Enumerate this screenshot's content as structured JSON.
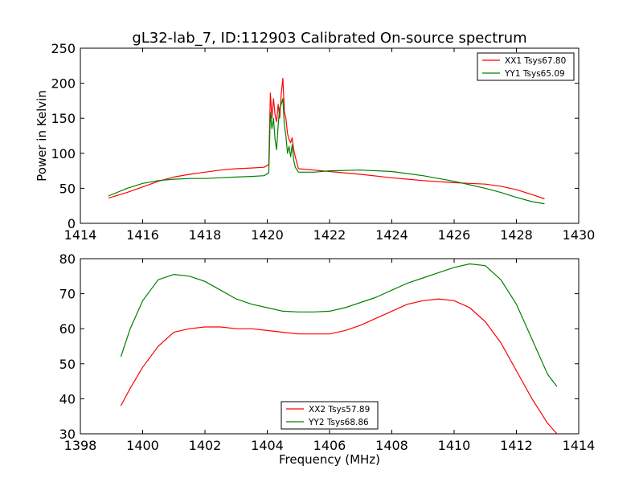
{
  "chart_data": [
    {
      "type": "line",
      "title": "gL32-lab_7, ID:112903 Calibrated On-source spectrum",
      "xlabel": "",
      "ylabel": "Power in Kelvin",
      "xlim": [
        1414,
        1430
      ],
      "ylim": [
        0,
        250
      ],
      "xticks": [
        "1414",
        "1416",
        "1418",
        "1420",
        "1422",
        "1424",
        "1426",
        "1428",
        "1430"
      ],
      "yticks": [
        "0",
        "50",
        "100",
        "150",
        "200",
        "250"
      ],
      "legend_position": "top-right",
      "series": [
        {
          "name": "XX1 Tsys67.80",
          "color": "#ff0000",
          "x": [
            1414.9,
            1415.5,
            1416.0,
            1416.5,
            1417.0,
            1417.5,
            1418.0,
            1418.5,
            1419.0,
            1419.5,
            1419.9,
            1420.05,
            1420.1,
            1420.15,
            1420.2,
            1420.25,
            1420.3,
            1420.35,
            1420.4,
            1420.45,
            1420.5,
            1420.55,
            1420.6,
            1420.65,
            1420.7,
            1420.75,
            1420.8,
            1420.85,
            1420.9,
            1421.0,
            1421.5,
            1422.0,
            1423.0,
            1424.0,
            1425.0,
            1426.0,
            1426.5,
            1427.0,
            1427.5,
            1428.0,
            1428.5,
            1428.9
          ],
          "y": [
            36,
            44,
            52,
            60,
            66,
            70,
            73,
            76,
            78,
            79,
            80,
            84,
            186,
            150,
            178,
            155,
            145,
            170,
            150,
            185,
            207,
            160,
            150,
            128,
            120,
            115,
            122,
            105,
            95,
            78,
            76,
            74,
            70,
            65,
            61,
            58,
            57,
            56,
            53,
            48,
            41,
            35
          ]
        },
        {
          "name": "YY1 Tsys65.09",
          "color": "#008000",
          "x": [
            1414.9,
            1415.5,
            1416.0,
            1416.5,
            1417.0,
            1417.5,
            1418.0,
            1418.5,
            1419.0,
            1419.5,
            1419.9,
            1420.05,
            1420.1,
            1420.15,
            1420.2,
            1420.25,
            1420.3,
            1420.35,
            1420.4,
            1420.45,
            1420.5,
            1420.55,
            1420.6,
            1420.65,
            1420.7,
            1420.75,
            1420.8,
            1420.85,
            1420.9,
            1421.0,
            1421.5,
            1422.0,
            1423.0,
            1424.0,
            1425.0,
            1426.0,
            1426.5,
            1427.0,
            1427.5,
            1428.0,
            1428.5,
            1428.9
          ],
          "y": [
            39,
            50,
            57,
            61,
            63,
            64,
            64,
            65,
            66,
            67,
            68,
            72,
            158,
            135,
            150,
            120,
            105,
            140,
            165,
            170,
            178,
            140,
            125,
            100,
            110,
            95,
            112,
            90,
            80,
            73,
            73,
            75,
            76,
            74,
            68,
            60,
            55,
            50,
            44,
            37,
            31,
            28
          ]
        }
      ]
    },
    {
      "type": "line",
      "title": "",
      "xlabel": "Frequency (MHz)",
      "ylabel": "",
      "xlim": [
        1398,
        1414
      ],
      "ylim": [
        30,
        80
      ],
      "xticks": [
        "1398",
        "1400",
        "1402",
        "1404",
        "1406",
        "1408",
        "1410",
        "1412",
        "1414"
      ],
      "yticks": [
        "30",
        "40",
        "50",
        "60",
        "70",
        "80"
      ],
      "legend_position": "lower-center",
      "series": [
        {
          "name": "XX2 Tsys57.89",
          "color": "#ff0000",
          "x": [
            1399.3,
            1399.6,
            1400.0,
            1400.5,
            1401.0,
            1401.5,
            1402.0,
            1402.5,
            1403.0,
            1403.5,
            1404.0,
            1404.5,
            1405.0,
            1405.5,
            1406.0,
            1406.5,
            1407.0,
            1407.5,
            1408.0,
            1408.5,
            1409.0,
            1409.5,
            1410.0,
            1410.5,
            1411.0,
            1411.5,
            1412.0,
            1412.5,
            1413.0,
            1413.3
          ],
          "y": [
            38,
            43,
            49,
            55,
            59,
            60,
            60.5,
            60.5,
            60,
            60,
            59.5,
            59,
            58.5,
            58.5,
            58.5,
            59.5,
            61,
            63,
            65,
            67,
            68,
            68.5,
            68,
            66,
            62,
            56,
            48,
            40,
            33,
            30
          ]
        },
        {
          "name": "YY2 Tsys68.86",
          "color": "#008000",
          "x": [
            1399.3,
            1399.6,
            1400.0,
            1400.5,
            1401.0,
            1401.5,
            1402.0,
            1402.5,
            1403.0,
            1403.5,
            1404.0,
            1404.5,
            1405.0,
            1405.5,
            1406.0,
            1406.5,
            1407.0,
            1407.5,
            1408.0,
            1408.5,
            1409.0,
            1409.5,
            1410.0,
            1410.5,
            1411.0,
            1411.5,
            1412.0,
            1412.5,
            1413.0,
            1413.3
          ],
          "y": [
            52,
            60,
            68,
            74,
            75.5,
            75,
            73.5,
            71,
            68.5,
            67,
            66,
            65,
            64.8,
            64.8,
            65,
            66,
            67.5,
            69,
            71,
            73,
            74.5,
            76,
            77.5,
            78.5,
            78,
            74,
            67,
            57,
            47,
            43.5
          ]
        }
      ]
    }
  ]
}
